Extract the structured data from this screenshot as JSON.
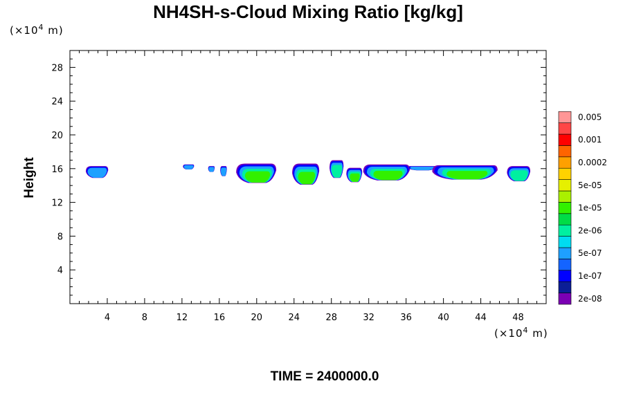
{
  "chart_data": {
    "type": "heatmap",
    "title": "NH4SH-s-Cloud Mixing Ratio [kg/kg]",
    "xlabel": "",
    "ylabel": "Height",
    "x_unit_prefix": "(×10",
    "x_unit_exp": "4",
    "x_unit_suffix": " m)",
    "y_unit_prefix": "(×10",
    "y_unit_exp": "4",
    "y_unit_suffix": " m)",
    "xlim": [
      0,
      51
    ],
    "ylim": [
      0,
      30
    ],
    "x_ticks": [
      4,
      8,
      12,
      16,
      20,
      24,
      28,
      32,
      36,
      40,
      44,
      48
    ],
    "y_ticks": [
      4,
      8,
      12,
      16,
      20,
      24,
      28
    ],
    "footer": "TIME = 2400000.0",
    "colorbar": {
      "colors": [
        "#7b00b4",
        "#0b1e96",
        "#0000ff",
        "#1464ff",
        "#1ea0ff",
        "#00dcf0",
        "#00f0a0",
        "#00dc46",
        "#32f000",
        "#aaf000",
        "#e6f000",
        "#ffd200",
        "#ffa000",
        "#ff6400",
        "#ff0000",
        "#ff4646",
        "#ff9696"
      ],
      "labels": [
        "2e-08",
        "",
        "1e-07",
        "",
        "5e-07",
        "",
        "2e-06",
        "",
        "1e-05",
        "",
        "5e-05",
        "",
        "0.0002",
        "",
        "0.001",
        "",
        "0.005"
      ]
    },
    "cloud_blobs": [
      {
        "x": [
          1.7,
          4.1
        ],
        "y_top": 16.3,
        "y_bottom": 14.9,
        "core": 0
      },
      {
        "x": [
          12.1,
          13.3
        ],
        "y_top": 16.5,
        "y_bottom": 15.9,
        "core": 0
      },
      {
        "x": [
          14.8,
          15.5
        ],
        "y_top": 16.3,
        "y_bottom": 15.6,
        "core": 0
      },
      {
        "x": [
          16.1,
          16.8
        ],
        "y_top": 16.3,
        "y_bottom": 15.1,
        "core": 0
      },
      {
        "x": [
          17.8,
          22.1
        ],
        "y_top": 16.6,
        "y_bottom": 14.3,
        "core": 2
      },
      {
        "x": [
          23.8,
          26.7
        ],
        "y_top": 16.6,
        "y_bottom": 14.1,
        "core": 2
      },
      {
        "x": [
          27.8,
          29.3
        ],
        "y_top": 17.0,
        "y_bottom": 14.9,
        "core": 1
      },
      {
        "x": [
          29.6,
          31.3
        ],
        "y_top": 16.1,
        "y_bottom": 14.4,
        "core": 2
      },
      {
        "x": [
          31.4,
          36.4
        ],
        "y_top": 16.5,
        "y_bottom": 14.6,
        "core": 2
      },
      {
        "x": [
          36.2,
          39.2
        ],
        "y_top": 16.3,
        "y_bottom": 15.8,
        "core": 0
      },
      {
        "x": [
          38.8,
          45.8
        ],
        "y_top": 16.4,
        "y_bottom": 14.7,
        "core": 2
      },
      {
        "x": [
          46.8,
          49.3
        ],
        "y_top": 16.3,
        "y_bottom": 14.5,
        "core": 1
      }
    ]
  }
}
